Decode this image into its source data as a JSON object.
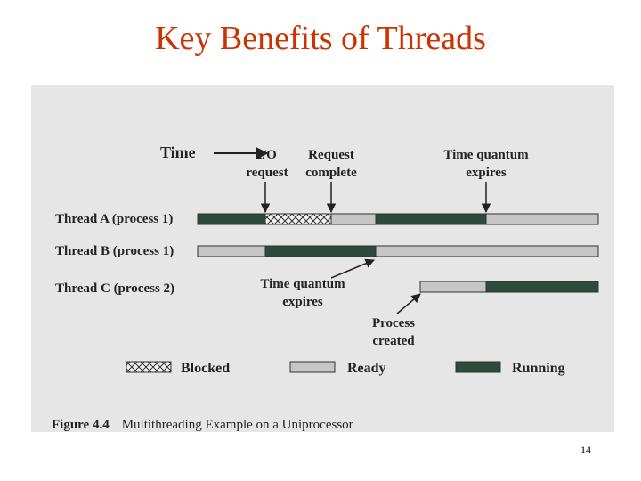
{
  "title": "Key Benefits of Threads",
  "figure": {
    "time_label": "Time",
    "annotations": [
      {
        "lines": [
          "I/O",
          "request"
        ]
      },
      {
        "lines": [
          "Request",
          "complete"
        ]
      },
      {
        "lines": [
          "Time quantum",
          "expires"
        ]
      },
      {
        "lines": [
          "Time quantum",
          "expires"
        ]
      },
      {
        "lines": [
          "Process",
          "created"
        ]
      }
    ],
    "threads": [
      "Thread A (process 1)",
      "Thread B (process 1)",
      "Thread C (process 2)"
    ],
    "legend": [
      "Blocked",
      "Ready",
      "Running"
    ],
    "caption": {
      "label": "Figure 4.4",
      "text": "Multithreading Example on a Uniprocessor"
    }
  },
  "page_number": 14
}
